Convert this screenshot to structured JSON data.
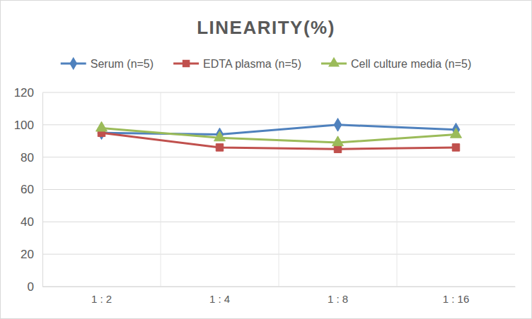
{
  "chart_data": {
    "type": "line",
    "title": "LINEARITY(%)",
    "categories": [
      "1 : 2",
      "1 : 4",
      "1 : 8",
      "1 : 16"
    ],
    "series": [
      {
        "name": "Serum (n=5)",
        "color": "#4f81bd",
        "marker": "diamond",
        "values": [
          95,
          94,
          100,
          97
        ]
      },
      {
        "name": "EDTA plasma (n=5)",
        "color": "#c0504d",
        "marker": "square",
        "values": [
          95,
          86,
          85,
          86
        ]
      },
      {
        "name": "Cell culture media (n=5)",
        "color": "#9bbb59",
        "marker": "triangle",
        "values": [
          98,
          92,
          89,
          94
        ]
      }
    ],
    "ylim": [
      0,
      120
    ],
    "yticks": [
      0,
      20,
      40,
      60,
      80,
      100,
      120
    ],
    "grid": true,
    "legend": "top"
  }
}
